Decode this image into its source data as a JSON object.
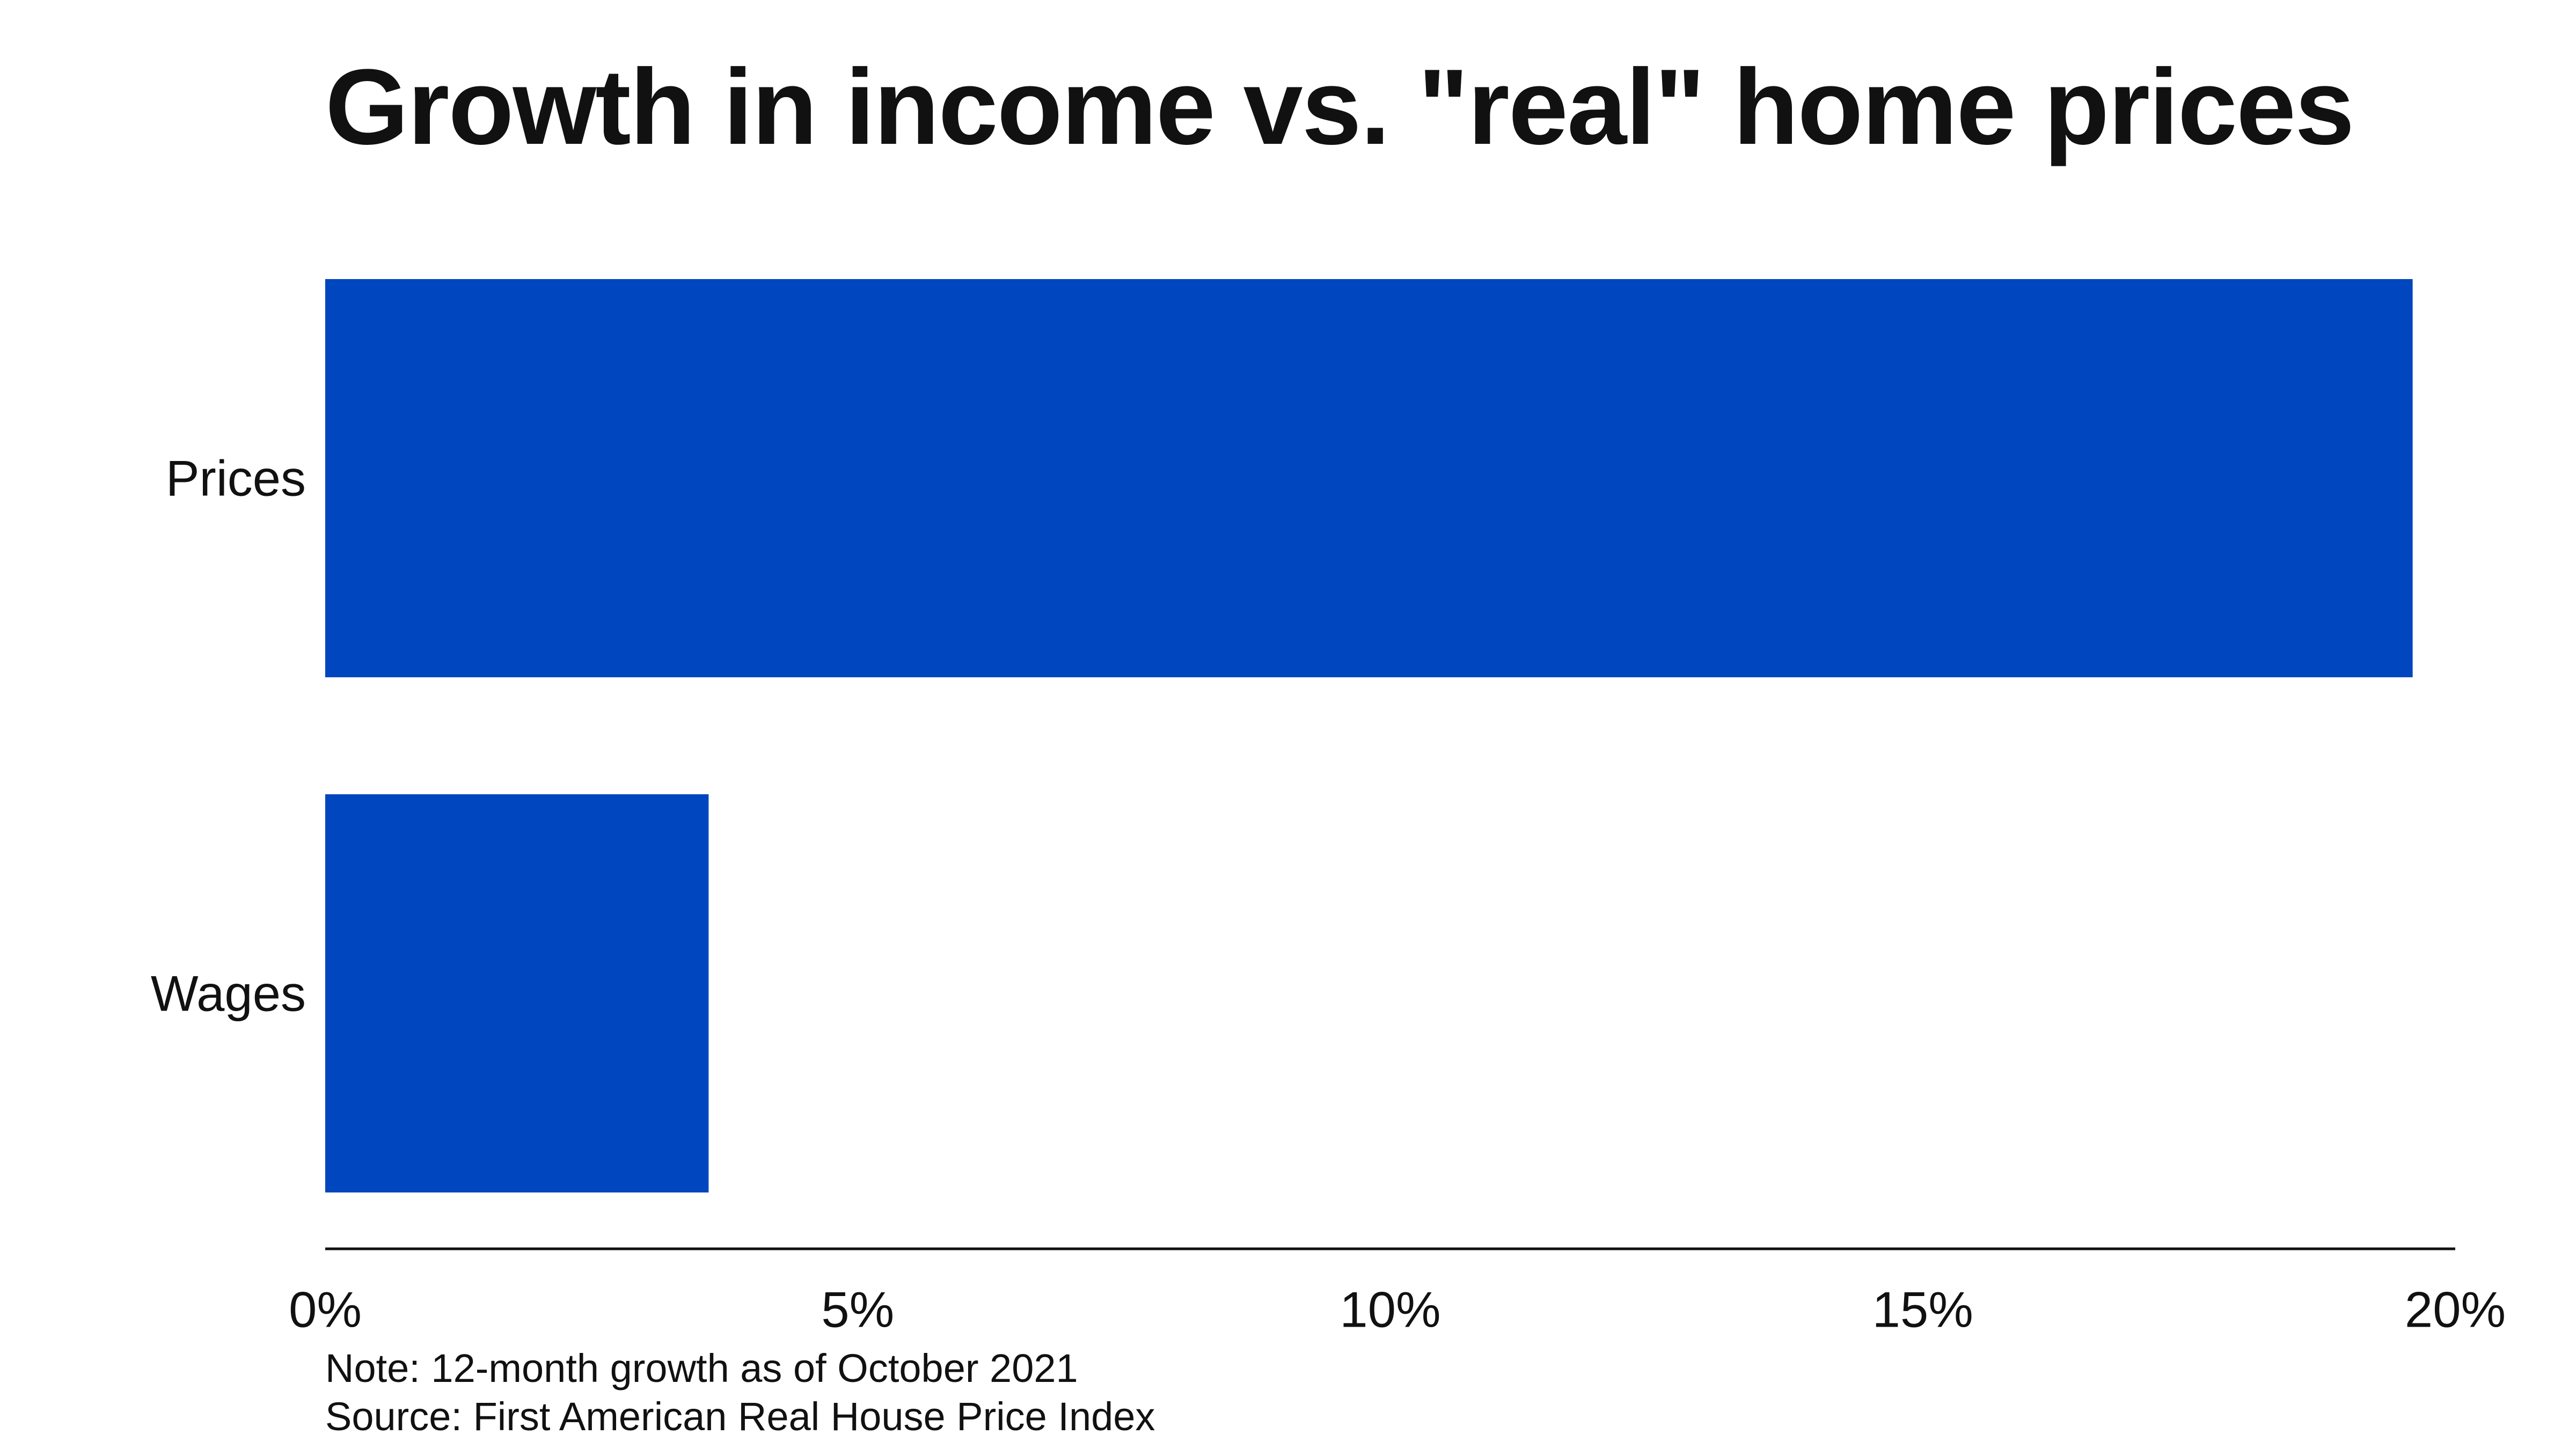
{
  "chart_data": {
    "type": "bar",
    "orientation": "horizontal",
    "title": "Growth in income vs. \"real\" home prices",
    "xlabel": "",
    "ylabel": "",
    "categories": [
      "Prices",
      "Wages"
    ],
    "values": [
      19.6,
      3.6
    ],
    "value_unit": "%",
    "xlim": [
      0,
      20
    ],
    "x_ticks": [
      0,
      5,
      10,
      15,
      20
    ],
    "x_tick_labels": [
      "0%",
      "5%",
      "10%",
      "15%",
      "20%"
    ],
    "grid": false,
    "legend": "none",
    "bar_color": "#0046BE",
    "axis_color": "#111111"
  },
  "notes": {
    "note": "Note: 12-month growth as of October 2021",
    "source": "Source: First American Real House Price Index"
  }
}
